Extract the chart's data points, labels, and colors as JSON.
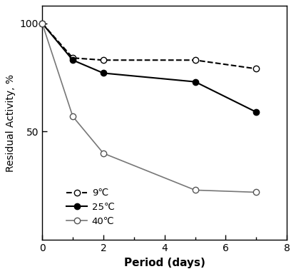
{
  "series": [
    {
      "label": "9℃",
      "x": [
        0,
        1,
        2,
        5,
        7
      ],
      "y": [
        100,
        84,
        83,
        83,
        79
      ],
      "linestyle": "dashed",
      "marker": "o",
      "markerfacecolor": "white",
      "markeredgecolor": "black",
      "color": "black",
      "linewidth": 1.5,
      "markersize": 6
    },
    {
      "label": "25℃",
      "x": [
        0,
        1,
        2,
        5,
        7
      ],
      "y": [
        100,
        83,
        77,
        73,
        59
      ],
      "linestyle": "solid",
      "marker": "o",
      "markerfacecolor": "black",
      "markeredgecolor": "black",
      "color": "black",
      "linewidth": 1.5,
      "markersize": 6
    },
    {
      "label": "40℃",
      "x": [
        0,
        1,
        2,
        5,
        7
      ],
      "y": [
        100,
        57,
        40,
        23,
        22
      ],
      "linestyle": "solid",
      "marker": "o",
      "markerfacecolor": "white",
      "markeredgecolor": "#555555",
      "color": "#777777",
      "linewidth": 1.2,
      "markersize": 6
    }
  ],
  "xlabel": "Period (days)",
  "ylabel": "Residual Activity, %",
  "xlim": [
    0,
    8
  ],
  "ylim": [
    0,
    108
  ],
  "xticks": [
    0,
    2,
    4,
    6,
    8
  ],
  "yticks": [
    50,
    100
  ],
  "background_color": "#ffffff",
  "legend_fontsize": 9.5,
  "xlabel_fontsize": 11,
  "ylabel_fontsize": 10,
  "tick_fontsize": 10
}
